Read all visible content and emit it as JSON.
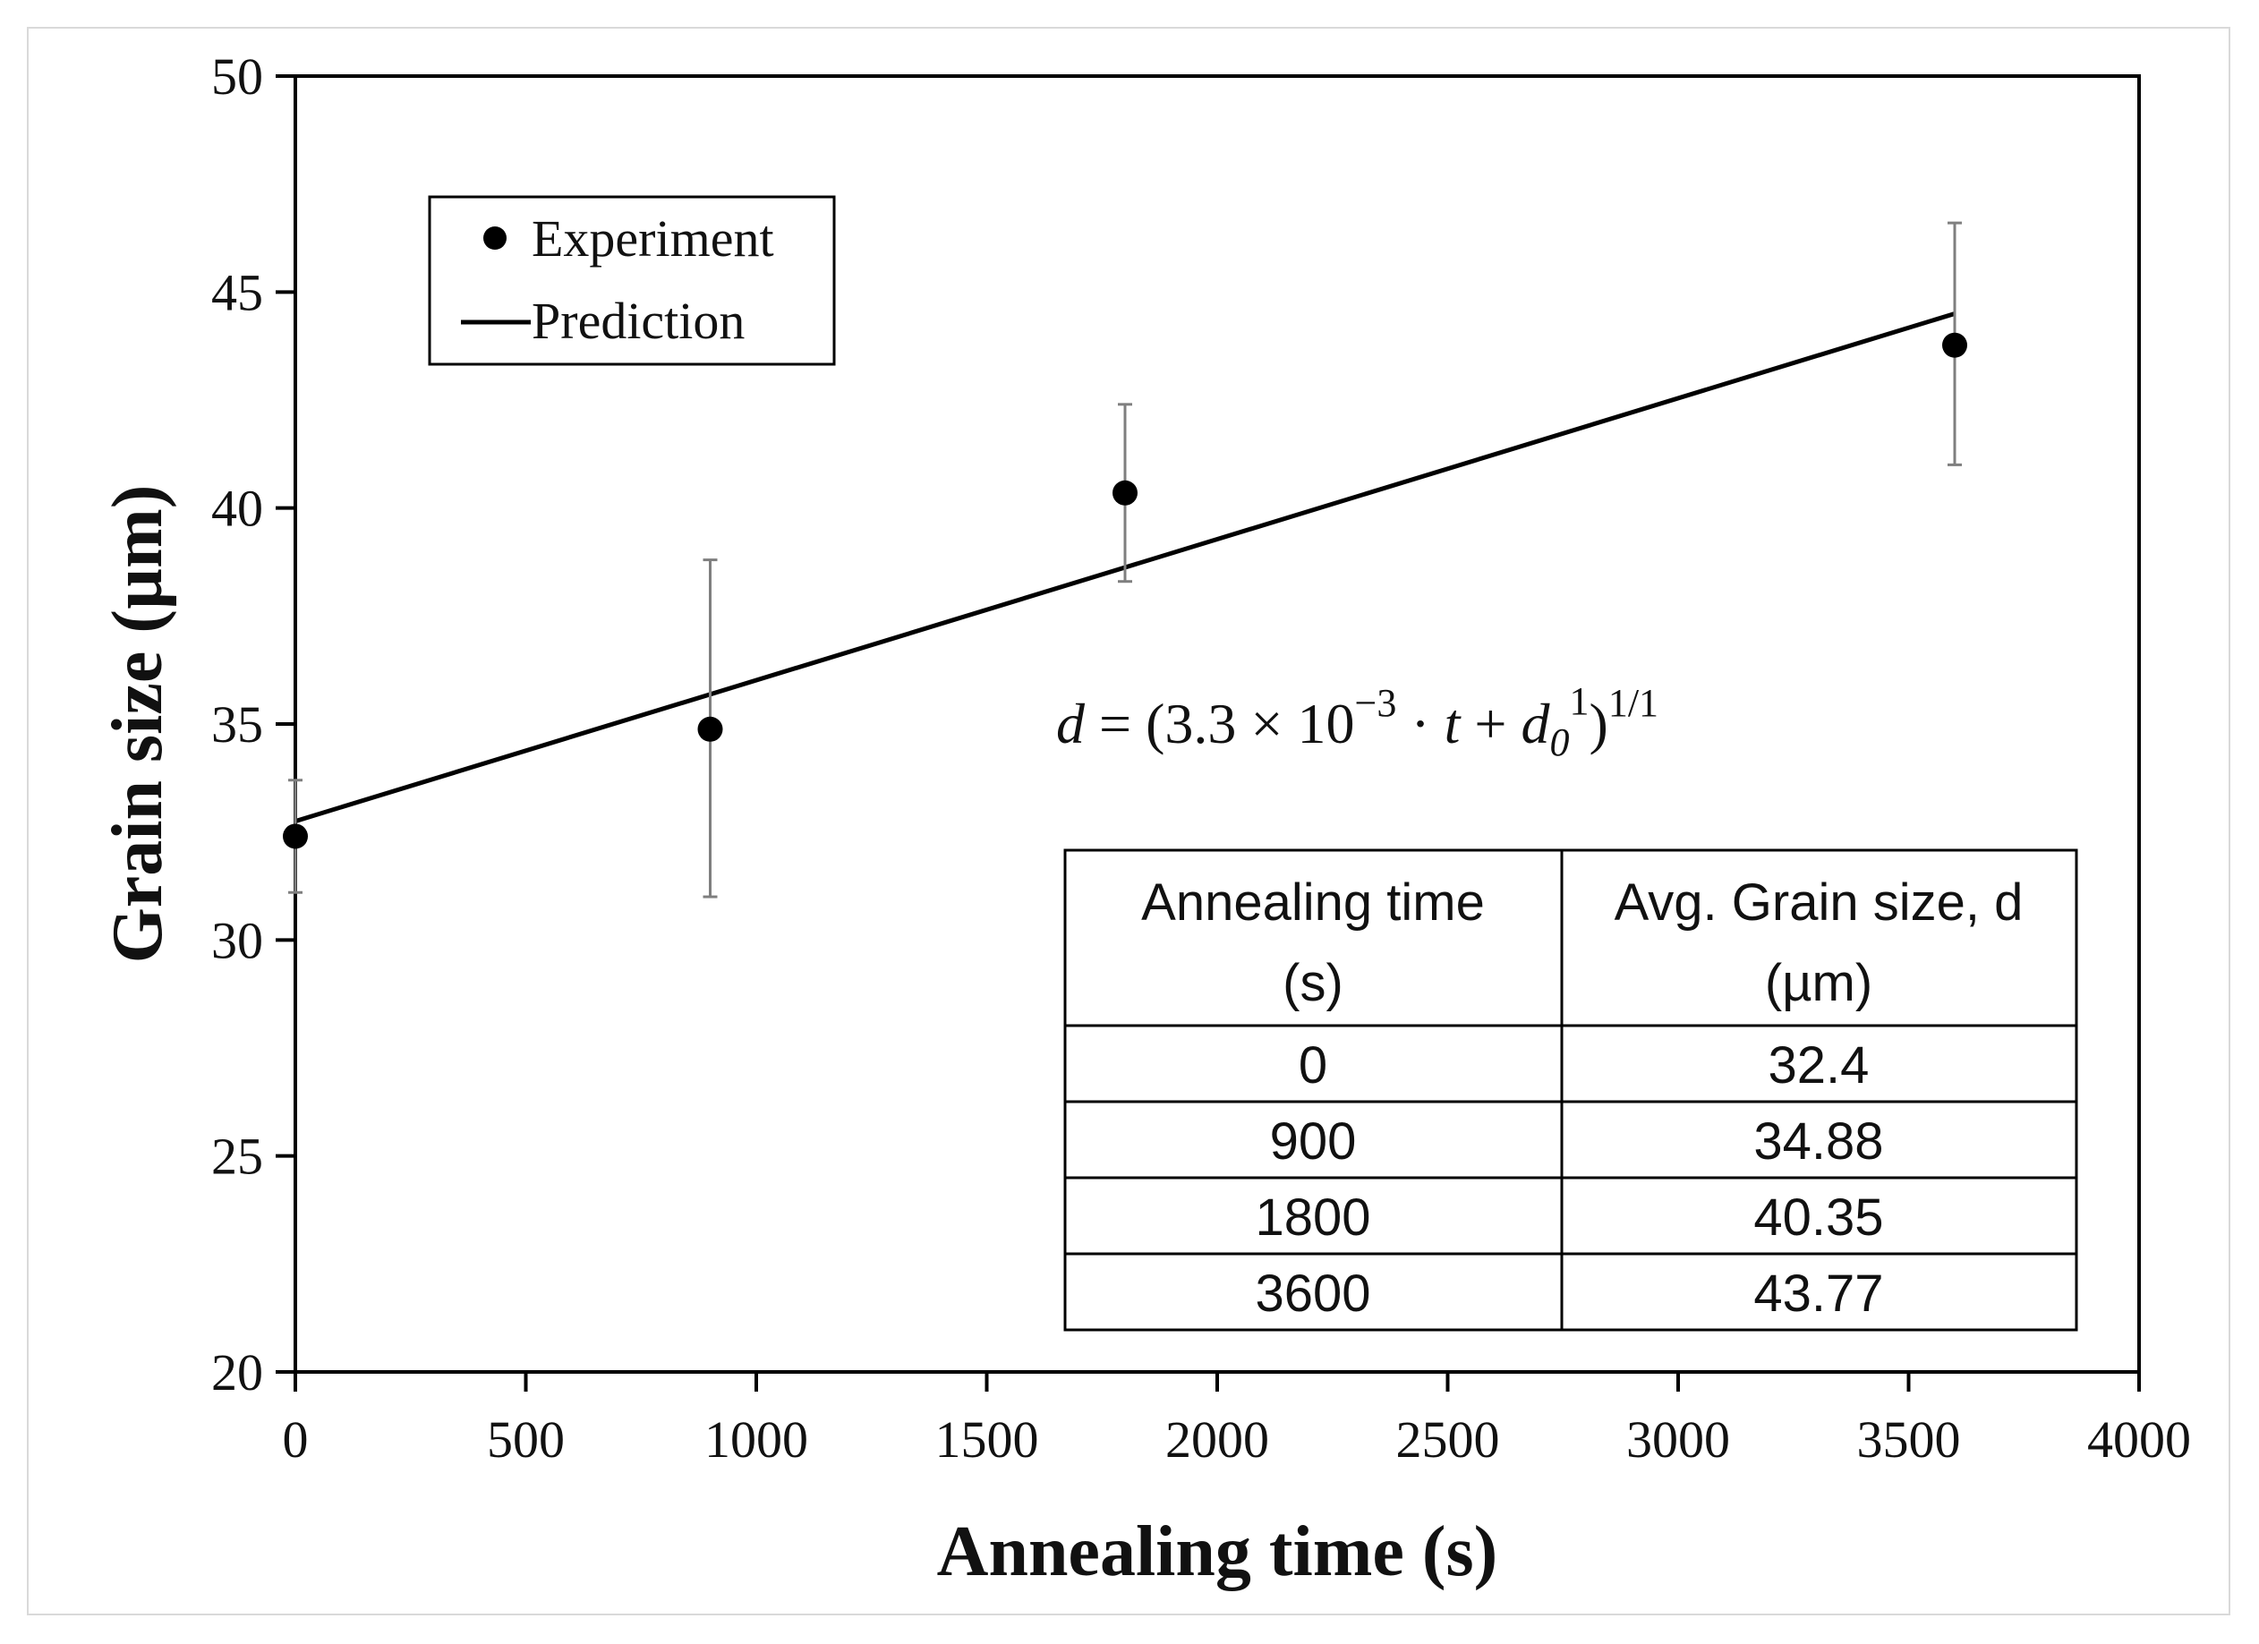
{
  "chart_data": {
    "type": "scatter",
    "title": "",
    "xlabel": "Annealing time (s)",
    "ylabel": "Grain size (µm)",
    "xlim": [
      0,
      4000
    ],
    "ylim": [
      20,
      50
    ],
    "xticks": [
      "0",
      "500",
      "1000",
      "1500",
      "2000",
      "2500",
      "3000",
      "3500",
      "4000"
    ],
    "xtick_values": [
      0,
      500,
      1000,
      1500,
      2000,
      2500,
      3000,
      3500,
      4000
    ],
    "yticks": [
      "20",
      "25",
      "30",
      "35",
      "40",
      "45",
      "50"
    ],
    "ytick_values": [
      20,
      25,
      30,
      35,
      40,
      45,
      50
    ],
    "grid": false,
    "legend_position": "top-left",
    "series": [
      {
        "name": "Experiment",
        "kind": "scatter",
        "x": [
          0,
          900,
          1800,
          3600
        ],
        "y": [
          32.4,
          34.88,
          40.35,
          43.77
        ],
        "err_low": [
          31.1,
          31.0,
          38.3,
          41.0
        ],
        "err_high": [
          33.7,
          38.8,
          42.4,
          46.6
        ]
      },
      {
        "name": "Prediction",
        "kind": "line",
        "x": [
          0,
          3600
        ],
        "y": [
          32.75,
          44.5
        ]
      }
    ],
    "annotation": {
      "lhs": "d",
      "eq": " = (3.3 × 10",
      "exp": "−3",
      "mid": " · ",
      "t": "t",
      "plus": " + ",
      "d0": "d",
      "sub": "0",
      "sup1": "1",
      "close": ")",
      "power": "1/1"
    },
    "table": {
      "header_left_line1": "Annealing time",
      "header_left_line2": "(s)",
      "header_right_line1": "Avg. Grain size, d",
      "header_right_line2": "(µm)",
      "rows": [
        [
          "0",
          "32.4"
        ],
        [
          "900",
          "34.88"
        ],
        [
          "1800",
          "40.35"
        ],
        [
          "3600",
          "43.77"
        ]
      ]
    },
    "colors": {
      "marker": "#000000",
      "line": "#000000",
      "errorbar": "#7f7f7f",
      "axis": "#000000"
    }
  }
}
